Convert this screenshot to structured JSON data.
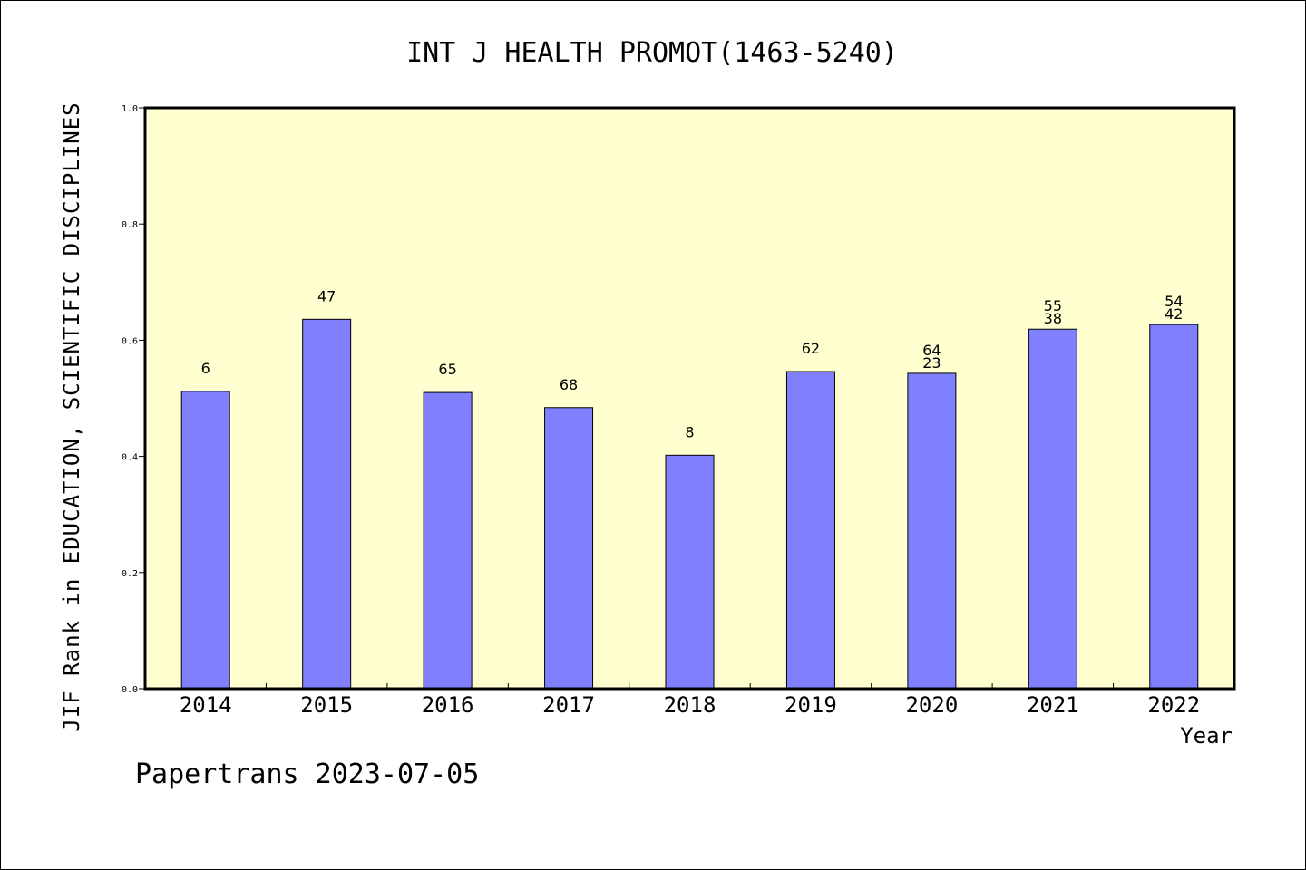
{
  "chart_data": {
    "type": "bar",
    "title": "INT J HEALTH PROMOT(1463-5240)",
    "xlabel": "Year",
    "ylabel": "JIF Rank in EDUCATION, SCIENTIFIC DISCIPLINES",
    "ylim": [
      0,
      1.0
    ],
    "yticks": [
      "0.0",
      "0.2",
      "0.4",
      "0.6",
      "0.8",
      "1.0"
    ],
    "grid": false,
    "categories": [
      "2014",
      "2015",
      "2016",
      "2017",
      "2018",
      "2019",
      "2020",
      "2021",
      "2022"
    ],
    "values": [
      0.512,
      0.636,
      0.51,
      0.484,
      0.402,
      0.546,
      0.543,
      0.619,
      0.627
    ],
    "bar_labels": [
      [
        "6"
      ],
      [
        "47"
      ],
      [
        "65"
      ],
      [
        "68"
      ],
      [
        "8"
      ],
      [
        "62"
      ],
      [
        "64",
        "23"
      ],
      [
        "55",
        "38"
      ],
      [
        "54",
        "42"
      ]
    ],
    "colors": {
      "plot_background": "#ffffd0",
      "bar_fill": "#8080ff",
      "bar_stroke": "#000000"
    }
  },
  "footer": "Papertrans 2023-07-05"
}
